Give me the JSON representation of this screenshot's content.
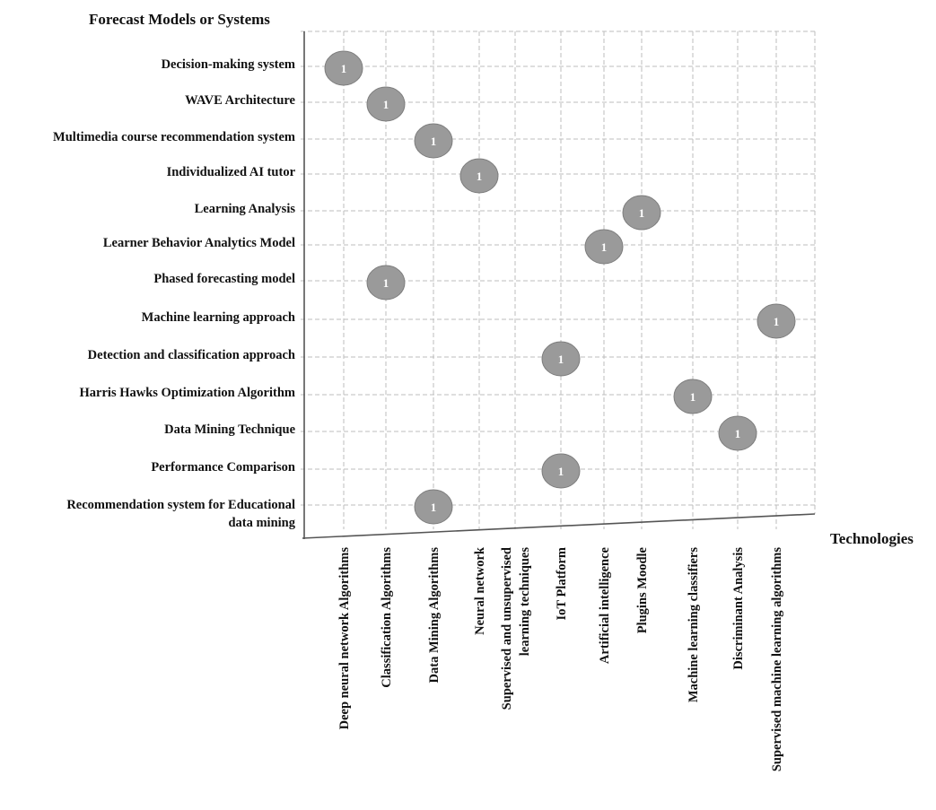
{
  "chart_data": {
    "type": "scatter",
    "y_axis_title": "Forecast Models or Systems",
    "x_axis_title": "Technologies",
    "rows": [
      [
        "Decision-making system"
      ],
      [
        "WAVE Architecture"
      ],
      [
        "Multimedia course recommendation system"
      ],
      [
        "Individualized AI tutor"
      ],
      [
        "Learning Analysis"
      ],
      [
        "Learner Behavior Analytics Model"
      ],
      [
        "Phased forecasting model"
      ],
      [
        "Machine learning approach"
      ],
      [
        "Detection and classification approach"
      ],
      [
        "Harris Hawks Optimization Algorithm"
      ],
      [
        "Data Mining Technique"
      ],
      [
        "Performance Comparison"
      ],
      [
        "Recommendation system for Educational",
        "data mining"
      ]
    ],
    "columns": [
      [
        "Deep neural network Algorithms"
      ],
      [
        "Classification Algorithms"
      ],
      [
        "Data Mining Algorithms"
      ],
      [
        "Neural network"
      ],
      [
        "Supervised and unsupervised",
        "learning techniques"
      ],
      [
        "IoT Platform"
      ],
      [
        "Artificial intelligence"
      ],
      [
        "Plugins Moodle"
      ],
      [
        "Machine learning classifiers"
      ],
      [
        "Discriminant Analysis"
      ],
      [
        "Supervised machine learning algorithms"
      ]
    ],
    "points": [
      {
        "row": "Decision-making system",
        "column": "Deep neural network Algorithms",
        "value": 1
      },
      {
        "row": "WAVE Architecture",
        "column": "Classification Algorithms",
        "value": 1
      },
      {
        "row": "Multimedia course recommendation system",
        "column": "Data Mining Algorithms",
        "value": 1
      },
      {
        "row": "Individualized AI tutor",
        "column": "Neural network",
        "value": 1
      },
      {
        "row": "Learning Analysis",
        "column": "Plugins Moodle",
        "value": 1
      },
      {
        "row": "Learner Behavior Analytics Model",
        "column": "Artificial intelligence",
        "value": 1
      },
      {
        "row": "Phased forecasting model",
        "column": "Classification Algorithms",
        "value": 1
      },
      {
        "row": "Machine learning approach",
        "column": "Supervised machine learning algorithms",
        "value": 1
      },
      {
        "row": "Detection and classification approach",
        "column": "IoT Platform",
        "value": 1
      },
      {
        "row": "Harris Hawks Optimization Algorithm",
        "column": "Machine learning classifiers",
        "value": 1
      },
      {
        "row": "Data Mining Technique",
        "column": "Discriminant Analysis",
        "value": 1
      },
      {
        "row": "Performance Comparison",
        "column": "IoT Platform",
        "value": 1
      },
      {
        "row": "Recommendation system for Educational data mining",
        "column": "Data Mining Algorithms",
        "value": 1
      }
    ],
    "grid": true,
    "bubble_color": "#9a9a9a"
  }
}
